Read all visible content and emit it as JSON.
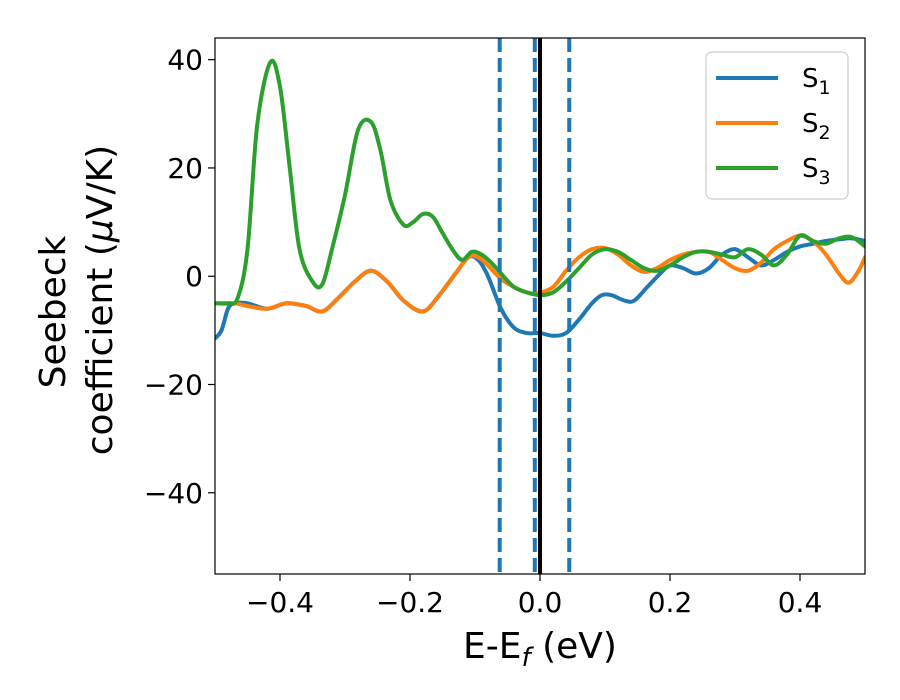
{
  "chart_data": {
    "type": "line",
    "xlabel_main": "E-E",
    "xlabel_sub": "f",
    "xlabel_unit": " (eV)",
    "ylabel_line1": "Seebeck",
    "ylabel_line2_text": "coefficient  (",
    "ylabel_mu": "μ",
    "ylabel_unit": "V/K)",
    "xlim": [
      -0.5,
      0.5
    ],
    "ylim": [
      -55,
      44
    ],
    "xticks": [
      -0.4,
      -0.2,
      0.0,
      0.2,
      0.4
    ],
    "xtick_labels": [
      "−0.4",
      "−0.2",
      "0.0",
      "0.2",
      "0.4"
    ],
    "yticks": [
      -40,
      -20,
      0,
      20,
      40
    ],
    "ytick_labels": [
      "−40",
      "−20",
      "0",
      "20",
      "40"
    ],
    "legend_position": "top-right",
    "grid": false,
    "vertical_lines": [
      {
        "x": -0.062,
        "style": "dashed",
        "color": "#1f77b4"
      },
      {
        "x": -0.008,
        "style": "dashed",
        "color": "#1f77b4"
      },
      {
        "x": 0.045,
        "style": "dashed",
        "color": "#1f77b4"
      },
      {
        "x": 0.0,
        "style": "solid",
        "color": "#000000"
      }
    ],
    "series": [
      {
        "name": "S",
        "sub": "1",
        "color": "#1f77b4",
        "x": [
          -0.5,
          -0.49,
          -0.48,
          -0.47,
          -0.45,
          -0.42,
          -0.39,
          -0.36,
          -0.335,
          -0.31,
          -0.285,
          -0.26,
          -0.235,
          -0.21,
          -0.18,
          -0.155,
          -0.13,
          -0.11,
          -0.095,
          -0.08,
          -0.06,
          -0.04,
          -0.02,
          0.0,
          0.02,
          0.04,
          0.06,
          0.08,
          0.095,
          0.11,
          0.13,
          0.145,
          0.165,
          0.185,
          0.2,
          0.22,
          0.24,
          0.26,
          0.28,
          0.3,
          0.32,
          0.34,
          0.36,
          0.38,
          0.4,
          0.42,
          0.44,
          0.46,
          0.48,
          0.5
        ],
        "y": [
          -11.5,
          -10,
          -6,
          -5,
          -5,
          -6,
          -5,
          -5.5,
          -6.5,
          -4,
          -1,
          1,
          -1,
          -4.5,
          -6.5,
          -3.5,
          0.5,
          3.5,
          3,
          0,
          -6,
          -9.5,
          -10.5,
          -10.5,
          -11,
          -10.5,
          -8,
          -5,
          -3.5,
          -3.5,
          -4.5,
          -4.5,
          -2,
          0.5,
          2,
          1.5,
          0.5,
          1.5,
          4,
          5,
          3.5,
          2,
          3,
          4.5,
          5.5,
          6,
          6.5,
          6.8,
          7,
          6.5
        ]
      },
      {
        "name": "S",
        "sub": "2",
        "color": "#ff7f0e",
        "x": [
          -0.5,
          -0.47,
          -0.45,
          -0.42,
          -0.39,
          -0.36,
          -0.335,
          -0.31,
          -0.285,
          -0.26,
          -0.235,
          -0.21,
          -0.18,
          -0.155,
          -0.13,
          -0.11,
          -0.095,
          -0.08,
          -0.06,
          -0.04,
          -0.02,
          -0.005,
          0.02,
          0.04,
          0.06,
          0.08,
          0.1,
          0.12,
          0.14,
          0.16,
          0.18,
          0.2,
          0.22,
          0.24,
          0.26,
          0.28,
          0.3,
          0.32,
          0.34,
          0.36,
          0.38,
          0.4,
          0.42,
          0.44,
          0.46,
          0.475,
          0.49,
          0.5
        ],
        "y": [
          -5,
          -5,
          -5.5,
          -6,
          -5,
          -5.5,
          -6.5,
          -4,
          -1,
          1,
          -1,
          -4.5,
          -6.5,
          -3.5,
          0.5,
          3.5,
          3.5,
          2,
          -0.5,
          -2,
          -3,
          -3.2,
          -2,
          1,
          3.5,
          5,
          5.2,
          4,
          2,
          0.8,
          1.5,
          3,
          4,
          4.5,
          4.5,
          3,
          1.5,
          1,
          2.5,
          5,
          6.5,
          7.5,
          6.5,
          4,
          0.5,
          -1.2,
          1,
          3.5
        ]
      },
      {
        "name": "S",
        "sub": "3",
        "color": "#2ca02c",
        "x": [
          -0.5,
          -0.48,
          -0.465,
          -0.45,
          -0.435,
          -0.415,
          -0.4,
          -0.385,
          -0.37,
          -0.35,
          -0.335,
          -0.32,
          -0.3,
          -0.28,
          -0.26,
          -0.245,
          -0.23,
          -0.21,
          -0.195,
          -0.18,
          -0.165,
          -0.15,
          -0.135,
          -0.12,
          -0.105,
          -0.09,
          -0.075,
          -0.06,
          -0.04,
          -0.02,
          0.0,
          0.02,
          0.04,
          0.06,
          0.08,
          0.1,
          0.12,
          0.14,
          0.16,
          0.18,
          0.2,
          0.22,
          0.24,
          0.26,
          0.28,
          0.3,
          0.32,
          0.34,
          0.36,
          0.38,
          0.4,
          0.42,
          0.44,
          0.46,
          0.48,
          0.5
        ],
        "y": [
          -5,
          -5,
          -4,
          5,
          28,
          39.5,
          35,
          20,
          5,
          -1,
          -1.5,
          5,
          15,
          27,
          28.5,
          23,
          14,
          9.5,
          10,
          11.5,
          11,
          8,
          5,
          3,
          4.5,
          4,
          2.5,
          0.5,
          -2,
          -3,
          -3.5,
          -3,
          -1,
          1.5,
          4,
          5,
          4.5,
          3,
          1.5,
          1,
          2,
          3.5,
          4.5,
          4.5,
          4,
          3.5,
          5,
          4,
          2,
          4,
          7.5,
          6.5,
          6,
          7,
          7.2,
          5.5
        ]
      }
    ]
  }
}
